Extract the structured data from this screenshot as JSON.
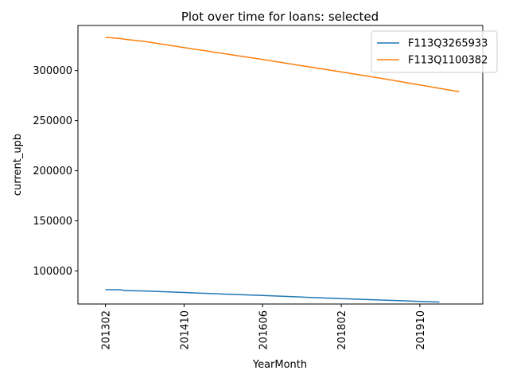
{
  "chart_data": {
    "type": "line",
    "title": "Plot over time for loans: selected",
    "xlabel": "YearMonth",
    "ylabel": "current_upb",
    "x_ticks": [
      "201302",
      "201410",
      "201606",
      "201802",
      "201910"
    ],
    "y_ticks": [
      "100000",
      "150000",
      "200000",
      "250000",
      "300000"
    ],
    "xlim": [
      -7,
      96
    ],
    "ylim": [
      67000,
      345000
    ],
    "grid": false,
    "legend_position": "top-right",
    "series": [
      {
        "name": "F113Q3265933",
        "color": "#1f77b4",
        "x": [
          0,
          3,
          4,
          5,
          6,
          10,
          20,
          30,
          40,
          50,
          60,
          70,
          80,
          85
        ],
        "y": [
          81300,
          81300,
          81200,
          80300,
          80300,
          80000,
          78500,
          76900,
          75500,
          73900,
          72400,
          71000,
          69600,
          69000
        ]
      },
      {
        "name": "F113Q1100382",
        "color": "#ff7f0e",
        "x": [
          0,
          1,
          2,
          3,
          4,
          5,
          10,
          20,
          30,
          40,
          50,
          60,
          70,
          80,
          90
        ],
        "y": [
          333000,
          333000,
          332500,
          332200,
          331800,
          331200,
          329000,
          323000,
          317000,
          311000,
          304800,
          298600,
          292300,
          285700,
          278800
        ]
      }
    ]
  }
}
